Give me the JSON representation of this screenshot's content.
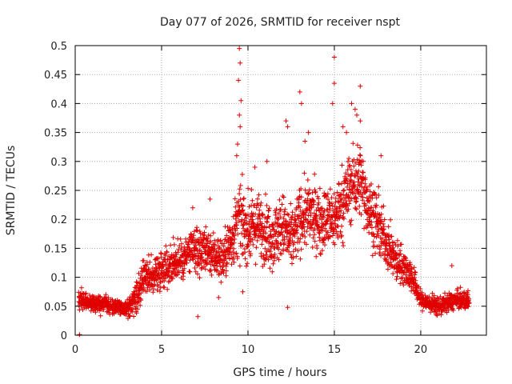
{
  "chart_data": {
    "type": "scatter",
    "title": "Day 077 of 2026, SRMTID for receiver nspt",
    "xlabel": "GPS time / hours",
    "ylabel": "SRMTID / TECUs",
    "xlim": [
      0,
      23.8
    ],
    "ylim": [
      0,
      0.5
    ],
    "x_ticks": [
      0,
      5,
      10,
      15,
      20
    ],
    "x_tick_labels": [
      "0",
      "5",
      "10",
      "15",
      "20"
    ],
    "y_ticks": [
      0,
      0.05,
      0.1,
      0.15,
      0.2,
      0.25,
      0.3,
      0.35,
      0.4,
      0.45,
      0.5
    ],
    "y_tick_labels": [
      "0",
      "0.05",
      "0.1",
      "0.15",
      "0.2",
      "0.25",
      "0.3",
      "0.35",
      "0.4",
      "0.45",
      "0.5"
    ],
    "grid": true,
    "marker": "+",
    "marker_color": "#e00000",
    "series": [
      {
        "name": "SRMTID",
        "trend_hours": [
          0.2,
          0.5,
          1.0,
          1.5,
          2.0,
          2.5,
          3.0,
          3.5,
          4.0,
          4.5,
          5.0,
          5.5,
          6.0,
          6.5,
          7.0,
          7.5,
          8.0,
          8.5,
          9.0,
          9.5,
          10.0,
          10.5,
          11.0,
          11.5,
          12.0,
          12.5,
          13.0,
          13.5,
          14.0,
          14.5,
          15.0,
          15.5,
          16.0,
          16.5,
          17.0,
          17.5,
          18.0,
          18.5,
          19.0,
          19.5,
          20.0,
          20.5,
          21.0,
          21.5,
          22.0,
          22.5,
          22.8
        ],
        "trend_values": [
          0.06,
          0.06,
          0.055,
          0.055,
          0.05,
          0.05,
          0.045,
          0.06,
          0.1,
          0.1,
          0.115,
          0.12,
          0.13,
          0.14,
          0.145,
          0.15,
          0.14,
          0.13,
          0.16,
          0.2,
          0.18,
          0.19,
          0.18,
          0.17,
          0.19,
          0.16,
          0.2,
          0.21,
          0.2,
          0.2,
          0.2,
          0.23,
          0.26,
          0.27,
          0.22,
          0.19,
          0.16,
          0.13,
          0.12,
          0.1,
          0.06,
          0.055,
          0.05,
          0.055,
          0.06,
          0.06,
          0.06
        ],
        "spread": [
          0.02,
          0.02,
          0.02,
          0.02,
          0.015,
          0.015,
          0.02,
          0.03,
          0.04,
          0.04,
          0.045,
          0.045,
          0.05,
          0.05,
          0.05,
          0.05,
          0.05,
          0.05,
          0.06,
          0.08,
          0.07,
          0.07,
          0.07,
          0.07,
          0.07,
          0.07,
          0.07,
          0.07,
          0.07,
          0.07,
          0.07,
          0.08,
          0.08,
          0.08,
          0.07,
          0.07,
          0.05,
          0.05,
          0.04,
          0.035,
          0.02,
          0.02,
          0.02,
          0.02,
          0.02,
          0.02,
          0.02
        ],
        "outliers": [
          [
            9.5,
            0.495
          ],
          [
            9.55,
            0.47
          ],
          [
            9.45,
            0.44
          ],
          [
            9.6,
            0.405
          ],
          [
            9.5,
            0.38
          ],
          [
            9.55,
            0.36
          ],
          [
            9.4,
            0.33
          ],
          [
            9.35,
            0.31
          ],
          [
            15.0,
            0.48
          ],
          [
            15.0,
            0.435
          ],
          [
            14.9,
            0.4
          ],
          [
            13.0,
            0.42
          ],
          [
            13.1,
            0.4
          ],
          [
            12.2,
            0.37
          ],
          [
            12.3,
            0.36
          ],
          [
            16.0,
            0.4
          ],
          [
            16.2,
            0.39
          ],
          [
            16.5,
            0.43
          ],
          [
            16.3,
            0.38
          ],
          [
            16.5,
            0.37
          ],
          [
            15.5,
            0.36
          ],
          [
            15.7,
            0.35
          ],
          [
            13.5,
            0.35
          ],
          [
            13.3,
            0.335
          ],
          [
            11.1,
            0.3
          ],
          [
            10.4,
            0.29
          ],
          [
            21.8,
            0.12
          ],
          [
            7.8,
            0.235
          ],
          [
            6.8,
            0.22
          ],
          [
            17.7,
            0.31
          ]
        ],
        "low_points": [
          [
            7.1,
            0.032
          ],
          [
            12.3,
            0.048
          ],
          [
            9.7,
            0.075
          ],
          [
            8.3,
            0.065
          ],
          [
            0.25,
            0.001
          ]
        ]
      }
    ]
  }
}
